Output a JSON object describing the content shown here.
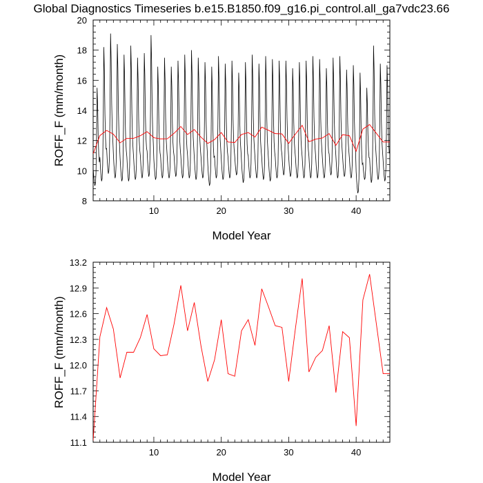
{
  "title": "Global Diagnostics Timeseries b.e15.B1850.f09_g16.pi_control.all_ga7vdc23.66",
  "colors": {
    "monthly": "#000000",
    "annual": "#ff0000",
    "axes": "#000000"
  },
  "chart_data": [
    {
      "type": "line",
      "xlabel": "Model Year",
      "ylabel": "ROFF_F (mm/month)",
      "xlim": [
        1,
        45
      ],
      "ylim": [
        8,
        20
      ],
      "xticks": [
        10,
        20,
        30,
        40
      ],
      "yticks": [
        8,
        10,
        12,
        14,
        16,
        18,
        20
      ],
      "series": [
        {
          "color": "#000000",
          "monthly_peaks": [
            15.5,
            18.2,
            19.1,
            18.4,
            17.7,
            18.3,
            17.5,
            17.8,
            19.0,
            16.9,
            17.5,
            16.9,
            17.3,
            17.7,
            18.0,
            17.5,
            17.2,
            16.9,
            17.6,
            17.1,
            17.3,
            16.5,
            17.2,
            17.7,
            17.1,
            17.6,
            17.4,
            17.3,
            17.3,
            16.8,
            17.2,
            17.3,
            17.6,
            17.4,
            16.8,
            17.5,
            17.6,
            16.7,
            17.0,
            16.5,
            15.5,
            18.3,
            17.1,
            17.0
          ],
          "monthly_troughs": [
            9.0,
            9.3,
            9.8,
            9.5,
            9.3,
            9.3,
            9.4,
            9.5,
            9.6,
            9.4,
            9.5,
            9.5,
            9.6,
            9.5,
            9.5,
            9.4,
            9.5,
            9.0,
            9.5,
            9.4,
            9.5,
            9.7,
            9.2,
            9.5,
            9.5,
            9.4,
            9.3,
            9.5,
            9.7,
            9.6,
            9.5,
            9.5,
            9.5,
            9.5,
            9.5,
            9.7,
            9.5,
            9.6,
            9.5,
            8.5,
            9.4,
            9.2,
            9.4,
            9.3
          ]
        },
        {
          "color": "#ff0000",
          "x": [
            1,
            2,
            3,
            4,
            5,
            6,
            7,
            8,
            9,
            10,
            11,
            12,
            13,
            14,
            15,
            16,
            17,
            18,
            19,
            20,
            21,
            22,
            23,
            24,
            25,
            26,
            27,
            28,
            29,
            30,
            31,
            32,
            33,
            34,
            35,
            36,
            37,
            38,
            39,
            40,
            41,
            42,
            43,
            44,
            45
          ],
          "values": [
            11.12,
            12.33,
            12.67,
            12.42,
            11.85,
            12.15,
            12.15,
            12.32,
            12.59,
            12.19,
            12.11,
            12.12,
            12.48,
            12.93,
            12.4,
            12.73,
            12.22,
            11.81,
            12.06,
            12.53,
            11.9,
            11.87,
            12.4,
            12.53,
            12.23,
            12.89,
            12.68,
            12.46,
            12.44,
            11.81,
            12.43,
            13.01,
            11.92,
            12.09,
            12.17,
            12.46,
            11.68,
            12.39,
            12.32,
            11.29,
            12.76,
            13.06,
            12.48,
            11.9,
            11.9
          ]
        }
      ]
    },
    {
      "type": "line",
      "xlabel": "Model Year",
      "ylabel": "ROFF_F (mm/month)",
      "xlim": [
        1,
        45
      ],
      "ylim": [
        11.1,
        13.2
      ],
      "xticks": [
        10,
        20,
        30,
        40
      ],
      "yticks": [
        11.1,
        11.4,
        11.7,
        12.0,
        12.3,
        12.6,
        12.9,
        13.2
      ],
      "series": [
        {
          "color": "#ff0000",
          "x": [
            1,
            2,
            3,
            4,
            5,
            6,
            7,
            8,
            9,
            10,
            11,
            12,
            13,
            14,
            15,
            16,
            17,
            18,
            19,
            20,
            21,
            22,
            23,
            24,
            25,
            26,
            27,
            28,
            29,
            30,
            31,
            32,
            33,
            34,
            35,
            36,
            37,
            38,
            39,
            40,
            41,
            42,
            43,
            44,
            45
          ],
          "values": [
            11.12,
            12.33,
            12.67,
            12.42,
            11.85,
            12.15,
            12.15,
            12.32,
            12.59,
            12.19,
            12.11,
            12.12,
            12.48,
            12.93,
            12.4,
            12.73,
            12.22,
            11.81,
            12.06,
            12.53,
            11.9,
            11.87,
            12.4,
            12.53,
            12.23,
            12.89,
            12.68,
            12.46,
            12.44,
            11.81,
            12.43,
            13.01,
            11.92,
            12.09,
            12.17,
            12.46,
            11.68,
            12.39,
            12.32,
            11.29,
            12.76,
            13.06,
            12.48,
            11.9,
            11.9
          ]
        }
      ]
    }
  ]
}
